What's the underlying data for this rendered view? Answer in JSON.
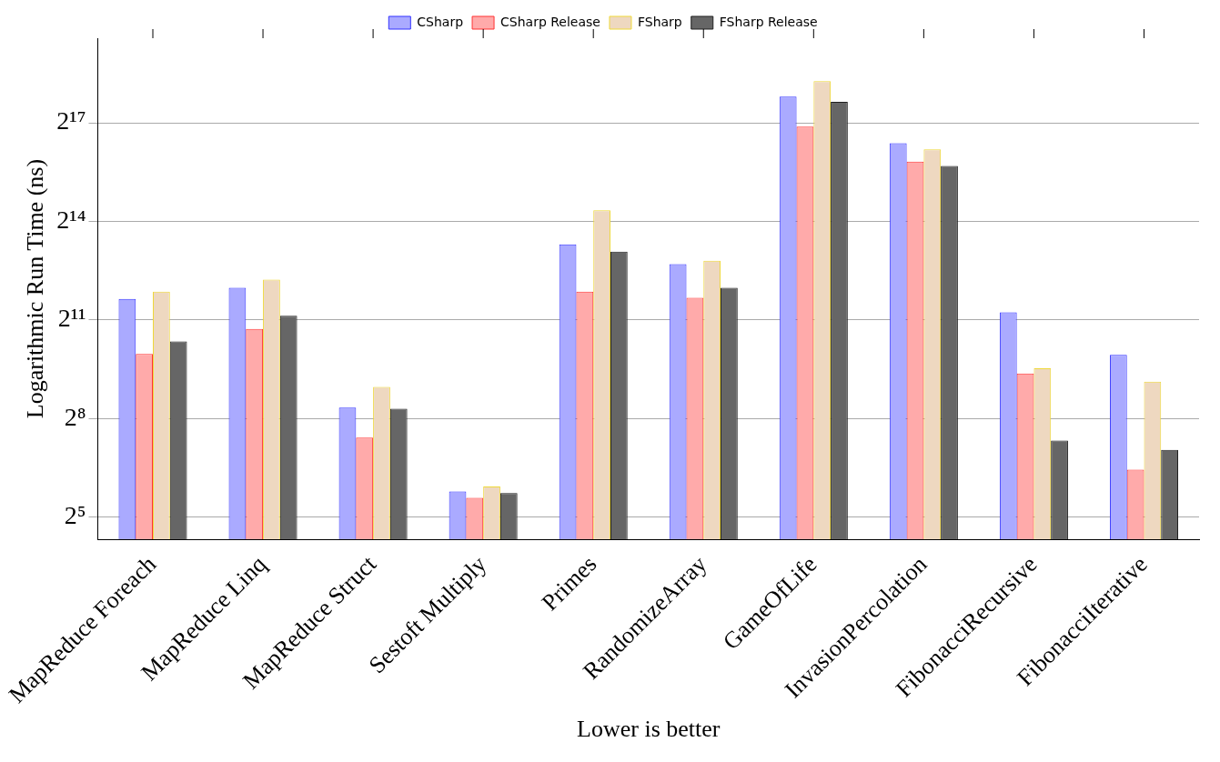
{
  "chart_data": {
    "type": "bar",
    "ylabel": "Logarithmic Run Time (ns)",
    "xlabel": "Lower is better",
    "categories": [
      "MapReduce Foreach",
      "MapReduce Linq",
      "MapReduce Struct",
      "Sestoft Multiply",
      "Primes",
      "RandomizeArray",
      "GameOfLife",
      "InvasionPercolation",
      "FibonacciRecursive",
      "FibonacciIterative"
    ],
    "series": [
      {
        "name": "CSharp",
        "color": "#aaaaff",
        "values": [
          3190,
          4040,
          322,
          55,
          10100,
          6650,
          228000,
          85300,
          2400,
          982
        ]
      },
      {
        "name": "CSharp Release",
        "color": "#ffaaaa",
        "values": [
          1000,
          1690,
          171,
          48,
          3720,
          3260,
          121000,
          57800,
          662,
          87
        ]
      },
      {
        "name": "FSharp",
        "color": "#eed8c0",
        "values": [
          3720,
          4800,
          498,
          61,
          20700,
          7130,
          316000,
          74800,
          739,
          556
        ]
      },
      {
        "name": "FSharp Release",
        "color": "#666666",
        "values": [
          1300,
          2240,
          315,
          53,
          8660,
          4040,
          204000,
          52900,
          161,
          132
        ]
      }
    ],
    "log": "y",
    "ylim": [
      20,
      782000
    ],
    "yticks": [
      {
        "value": 32,
        "label": "2⁵"
      },
      {
        "value": 256,
        "label": "2⁸"
      },
      {
        "value": 2048,
        "label": "2¹¹"
      },
      {
        "value": 16384,
        "label": "2¹⁴"
      },
      {
        "value": 131072,
        "label": "2¹⁷"
      }
    ],
    "grid": "y",
    "legend": "top"
  }
}
